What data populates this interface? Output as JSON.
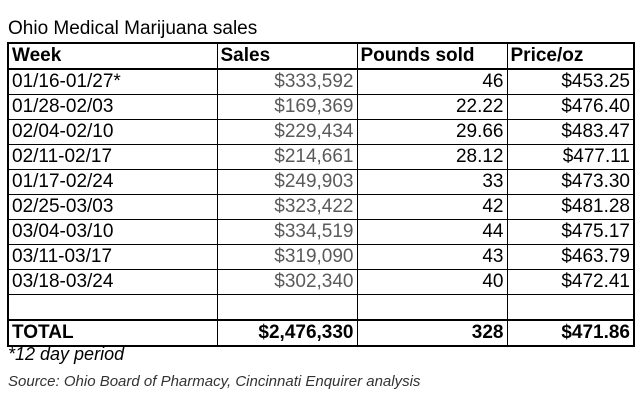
{
  "title": "Ohio Medical Marijuana sales",
  "table": {
    "headers": [
      "Week",
      "Sales",
      "Pounds sold",
      "Price/oz"
    ],
    "rows": [
      [
        "01/16-01/27*",
        "$333,592",
        "46",
        "$453.25"
      ],
      [
        "01/28-02/03",
        "$169,369",
        "22.22",
        "$476.40"
      ],
      [
        "02/04-02/10",
        "$229,434",
        "29.66",
        "$483.47"
      ],
      [
        "02/11-02/17",
        "$214,661",
        "28.12",
        "$477.11"
      ],
      [
        "01/17-02/24",
        "$249,903",
        "33",
        "$473.30"
      ],
      [
        "02/25-03/03",
        "$323,422",
        "42",
        "$481.28"
      ],
      [
        "03/04-03/10",
        "$334,519",
        "44",
        "$475.17"
      ],
      [
        "03/11-03/17",
        "$319,090",
        "43",
        "$463.79"
      ],
      [
        "03/18-03/24",
        "$302,340",
        "40",
        "$472.41"
      ]
    ],
    "total": [
      "TOTAL",
      "$2,476,330",
      "328",
      "$471.86"
    ]
  },
  "footnote": "*12 day period",
  "source": "Source: Ohio Board of Pharmacy, Cincinnati Enquirer analysis"
}
